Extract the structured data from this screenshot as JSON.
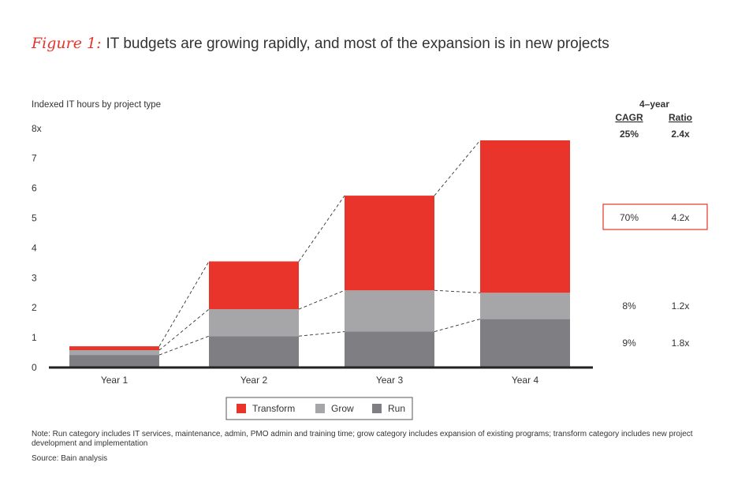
{
  "title": {
    "prefix": "Figure 1:",
    "text": "IT budgets are growing rapidly, and most of the expansion is in new projects"
  },
  "chart_data": {
    "type": "bar",
    "stacked": true,
    "ylabel": "Indexed IT hours by project type",
    "ylim": [
      0,
      8
    ],
    "y_ticks": [
      "0",
      "1",
      "2",
      "3",
      "4",
      "5",
      "6",
      "7",
      "8x"
    ],
    "categories": [
      "Year 1",
      "Year 2",
      "Year 3",
      "Year 4"
    ],
    "series": [
      {
        "name": "Run",
        "color": "#7f7f83",
        "values": [
          0.42,
          1.05,
          1.2,
          1.62
        ]
      },
      {
        "name": "Grow",
        "color": "#a6a6a9",
        "values": [
          0.16,
          0.9,
          1.38,
          0.88
        ]
      },
      {
        "name": "Transform",
        "color": "#e8342a",
        "values": [
          0.13,
          1.6,
          3.17,
          5.1
        ]
      }
    ],
    "legend": [
      "Transform",
      "Grow",
      "Run"
    ],
    "cagr_table": {
      "header_top": "4–year",
      "col1": "CAGR",
      "col2": "Ratio",
      "total": {
        "cagr": "25%",
        "ratio": "2.4x"
      },
      "rows": [
        {
          "series": "Transform",
          "cagr": "70%",
          "ratio": "4.2x",
          "highlight": true
        },
        {
          "series": "Grow",
          "cagr": "8%",
          "ratio": "1.2x",
          "highlight": false
        },
        {
          "series": "Run",
          "cagr": "9%",
          "ratio": "1.8x",
          "highlight": false
        }
      ]
    }
  },
  "note": "Note: Run category includes IT services, maintenance, admin, PMO admin and training time; grow category includes expansion of existing programs; transform category includes new project development and implementation",
  "source": "Source: Bain analysis"
}
